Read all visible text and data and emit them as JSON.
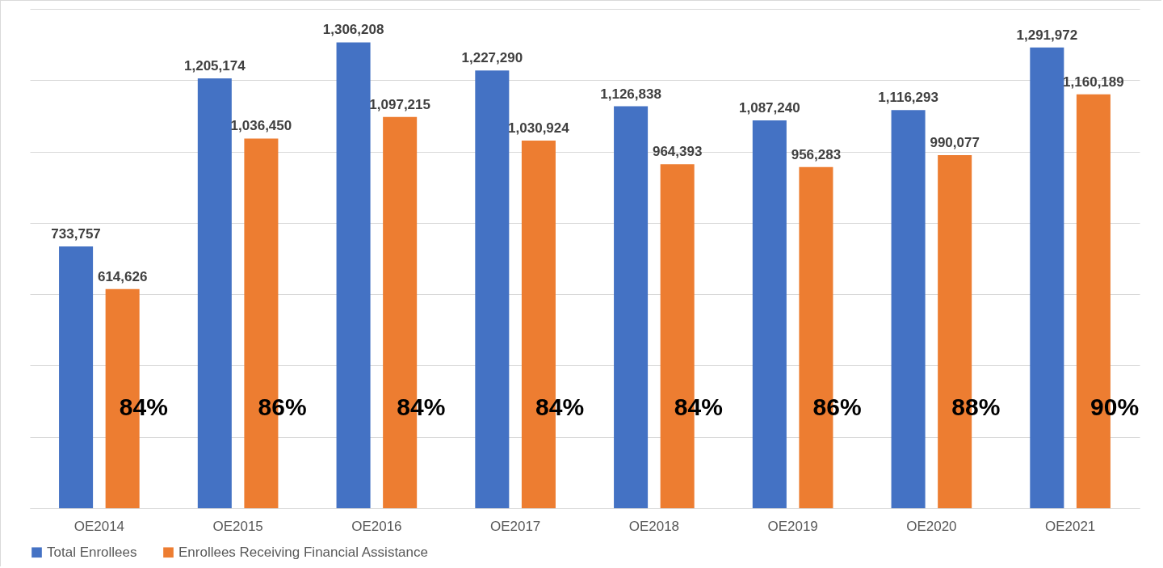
{
  "chart_data": {
    "type": "bar",
    "categories": [
      "OE2014",
      "OE2015",
      "OE2016",
      "OE2017",
      "OE2018",
      "OE2019",
      "OE2020",
      "OE2021"
    ],
    "series": [
      {
        "name": "Total Enrollees",
        "color": "#4472c4",
        "values": [
          733757,
          1205174,
          1306208,
          1227290,
          1126838,
          1087240,
          1116293,
          1291972
        ],
        "value_labels": [
          "733,757",
          "1,205,174",
          "1,306,208",
          "1,227,290",
          "1,126,838",
          "1,087,240",
          "1,116,293",
          "1,291,972"
        ]
      },
      {
        "name": "Enrollees Receiving Financial Assistance",
        "color": "#ed7d31",
        "values": [
          614626,
          1036450,
          1097215,
          1030924,
          964393,
          956283,
          990077,
          1160189
        ],
        "value_labels": [
          "614,626",
          "1,036,450",
          "1,097,215",
          "1,030,924",
          "964,393",
          "956,283",
          "990,077",
          "1,160,189"
        ]
      }
    ],
    "tick_labels": "x",
    "grid": "y",
    "legend": "bottom",
    "annotations": [
      "84%",
      "86%",
      "84%",
      "84%",
      "84%",
      "86%",
      "88%",
      "90%"
    ]
  }
}
